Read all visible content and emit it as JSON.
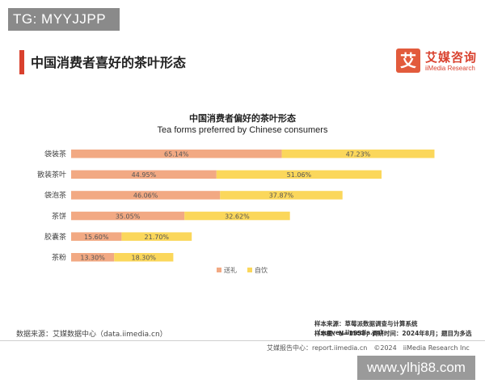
{
  "watermark_top": "TG: MYYJJPP",
  "header": {
    "title": "中国消费者喜好的茶叶形态",
    "logo_mark": "艾",
    "logo_cn": "艾媒咨询",
    "logo_en": "iiMedia Research"
  },
  "colors": {
    "gift": "#f2a983",
    "self": "#fbd75b",
    "accent": "#d9412e"
  },
  "chart_data": {
    "type": "bar",
    "orientation": "horizontal",
    "stacked": true,
    "title": "中国消费者偏好的茶叶形态",
    "subtitle": "Tea forms preferred by Chinese consumers",
    "categories": [
      "袋装茶",
      "散装茶叶",
      "袋泡茶",
      "茶饼",
      "胶囊茶",
      "茶粉"
    ],
    "series": [
      {
        "name": "送礼",
        "values": [
          65.14,
          44.95,
          46.06,
          35.05,
          15.6,
          13.3
        ],
        "labels": [
          "65.14%",
          "44.95%",
          "46.06%",
          "35.05%",
          "15.60%",
          "13.30%"
        ]
      },
      {
        "name": "自饮",
        "values": [
          47.23,
          51.06,
          37.87,
          32.62,
          21.7,
          18.3
        ],
        "labels": [
          "47.23%",
          "51.06%",
          "37.87%",
          "32.62%",
          "21.70%",
          "18.30%"
        ]
      }
    ],
    "legend": "bottom-center",
    "grid": false
  },
  "source": {
    "left": "数据来源：艾媒数据中心（data.iimedia.cn）",
    "right_line1": "样本来源：草莓派数据调查与计算系统（survey.iimedia.cn）",
    "right_line2": "样本量：N=1558；调研时间：2024年8月；题目为多选"
  },
  "footer": "艾媒报告中心：report.iimedia.cn　©2024　iiMedia Research Inc",
  "watermark_bottom": "www.ylhj88.com"
}
